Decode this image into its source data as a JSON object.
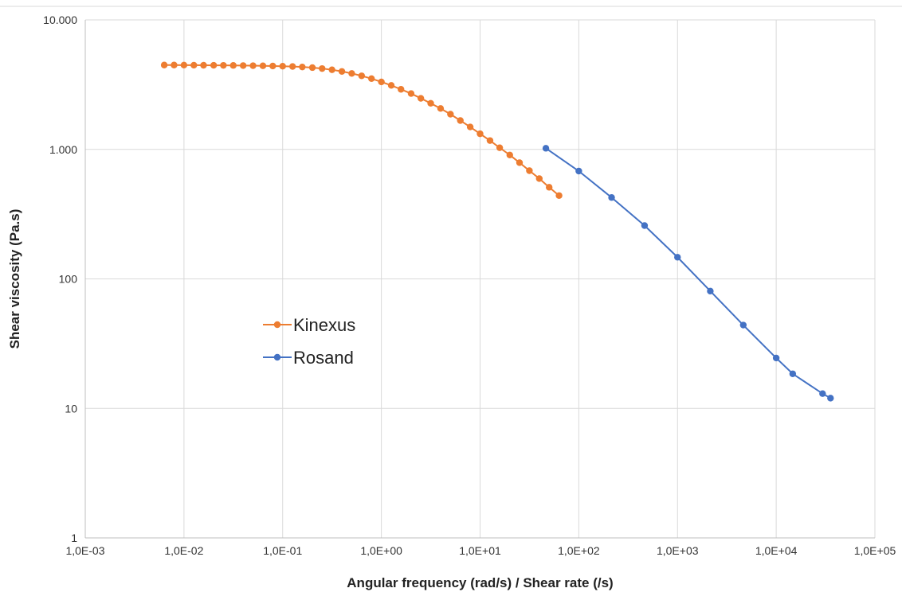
{
  "chart_data": {
    "type": "line",
    "title": "",
    "xlabel": "Angular frequency (rad/s) / Shear rate (/s)",
    "ylabel": "Shear viscosity (Pa.s)",
    "x_scale": "log",
    "y_scale": "log",
    "xlim": [
      0.001,
      100000
    ],
    "ylim": [
      1,
      10000
    ],
    "x_tick_values": [
      0.001,
      0.01,
      0.1,
      1,
      10,
      100,
      1000,
      10000,
      100000
    ],
    "x_tick_labels": [
      "1,0E-03",
      "1,0E-02",
      "1,0E-01",
      "1,0E+00",
      "1,0E+01",
      "1,0E+02",
      "1,0E+03",
      "1,0E+04",
      "1,0E+05"
    ],
    "y_tick_values": [
      1,
      10,
      100,
      1000,
      10000
    ],
    "y_tick_labels": [
      "1",
      "10",
      "100",
      "1.000",
      "10.000"
    ],
    "grid": true,
    "legend_position": "left-middle",
    "series": [
      {
        "name": "Kinexus",
        "color": "#ED7D31",
        "x": [
          0.00631,
          0.00794,
          0.01,
          0.0126,
          0.0158,
          0.02,
          0.0251,
          0.0316,
          0.0398,
          0.0501,
          0.0631,
          0.0794,
          0.1,
          0.126,
          0.158,
          0.2,
          0.251,
          0.316,
          0.398,
          0.501,
          0.631,
          0.794,
          1.0,
          1.26,
          1.58,
          2.0,
          2.51,
          3.16,
          3.98,
          5.01,
          6.31,
          7.94,
          10.0,
          12.6,
          15.8,
          20.0,
          25.1,
          31.6,
          39.8,
          50.1,
          63.1
        ],
        "y": [
          4480,
          4480,
          4475,
          4470,
          4465,
          4460,
          4455,
          4450,
          4440,
          4430,
          4420,
          4405,
          4390,
          4365,
          4330,
          4280,
          4210,
          4120,
          4000,
          3860,
          3700,
          3520,
          3320,
          3120,
          2910,
          2700,
          2480,
          2270,
          2070,
          1870,
          1670,
          1490,
          1320,
          1170,
          1030,
          905,
          790,
          685,
          595,
          510,
          440
        ]
      },
      {
        "name": "Rosand",
        "color": "#4472C4",
        "x": [
          46.4,
          100,
          215,
          464,
          1000,
          2150,
          4640,
          10000,
          14700,
          29500,
          35500
        ],
        "y": [
          1020,
          680,
          425,
          258,
          147,
          80.5,
          44,
          24.5,
          18.5,
          13,
          12
        ]
      }
    ]
  }
}
